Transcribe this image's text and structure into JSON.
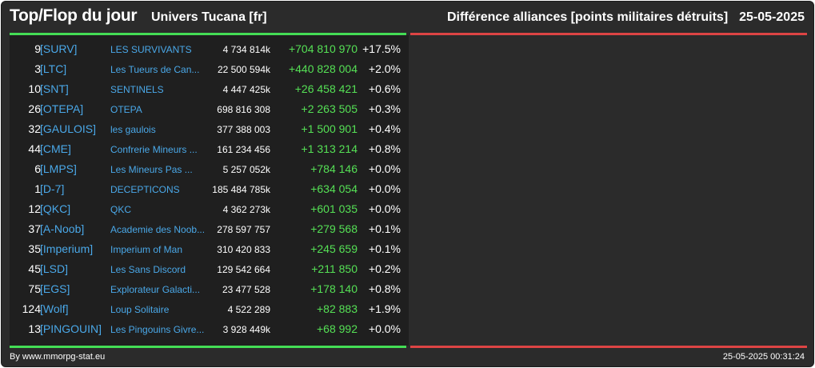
{
  "header": {
    "title": "Top/Flop du jour",
    "universe": "Univers Tucana [fr]",
    "subtitle": "Différence alliances [points militaires détruits]",
    "date": "25-05-2025"
  },
  "colors": {
    "background": "#2b2b2b",
    "top_line": "#44dd55",
    "flop_line": "#dd4444",
    "tag_blue": "#4aa8e8",
    "gain_green": "#55e055"
  },
  "top": [
    {
      "rank": "9",
      "tag": "[SURV]",
      "name": "LES SURVIVANTS",
      "points": "4 734 814k",
      "delta": "+704 810 970",
      "pct": "+17.5%"
    },
    {
      "rank": "3",
      "tag": "[LTC]",
      "name": "Les Tueurs de Can...",
      "points": "22 500 594k",
      "delta": "+440 828 004",
      "pct": "+2.0%"
    },
    {
      "rank": "10",
      "tag": "[SNT]",
      "name": "SENTINELS",
      "points": "4 447 425k",
      "delta": "+26 458 421",
      "pct": "+0.6%"
    },
    {
      "rank": "26",
      "tag": "[OTEPA]",
      "name": "OTEPA",
      "points": "698 816 308",
      "delta": "+2 263 505",
      "pct": "+0.3%"
    },
    {
      "rank": "32",
      "tag": "[GAULOIS]",
      "name": "les gaulois",
      "points": "377 388 003",
      "delta": "+1 500 901",
      "pct": "+0.4%"
    },
    {
      "rank": "44",
      "tag": "[CME]",
      "name": "Confrerie Mineurs ...",
      "points": "161 234 456",
      "delta": "+1 313 214",
      "pct": "+0.8%"
    },
    {
      "rank": "6",
      "tag": "[LMPS]",
      "name": "Les Mineurs Pas ...",
      "points": "5 257 052k",
      "delta": "+784 146",
      "pct": "+0.0%"
    },
    {
      "rank": "1",
      "tag": "[D-7]",
      "name": "DECEPTICONS",
      "points": "185 484 785k",
      "delta": "+634 054",
      "pct": "+0.0%"
    },
    {
      "rank": "12",
      "tag": "[QKC]",
      "name": "QKC",
      "points": "4 362 273k",
      "delta": "+601 035",
      "pct": "+0.0%"
    },
    {
      "rank": "37",
      "tag": "[A-Noob]",
      "name": "Academie des Noob...",
      "points": "278 597 757",
      "delta": "+279 568",
      "pct": "+0.1%"
    },
    {
      "rank": "35",
      "tag": "[Imperium]",
      "name": "Imperium of Man",
      "points": "310 420 833",
      "delta": "+245 659",
      "pct": "+0.1%"
    },
    {
      "rank": "45",
      "tag": "[LSD]",
      "name": "Les Sans Discord",
      "points": "129 542 664",
      "delta": "+211 850",
      "pct": "+0.2%"
    },
    {
      "rank": "75",
      "tag": "[EGS]",
      "name": "Explorateur Galacti...",
      "points": "23 477 528",
      "delta": "+178 140",
      "pct": "+0.8%"
    },
    {
      "rank": "124",
      "tag": "[Wolf]",
      "name": "Loup Solitaire",
      "points": "4 522 289",
      "delta": "+82 883",
      "pct": "+1.9%"
    },
    {
      "rank": "13",
      "tag": "[PINGOUIN]",
      "name": "Les Pingouins Givre...",
      "points": "3 928 449k",
      "delta": "+68 992",
      "pct": "+0.0%"
    }
  ],
  "footer": {
    "source": "By www.mmorpg-stat.eu",
    "timestamp": "25-05-2025 00:31:24"
  }
}
